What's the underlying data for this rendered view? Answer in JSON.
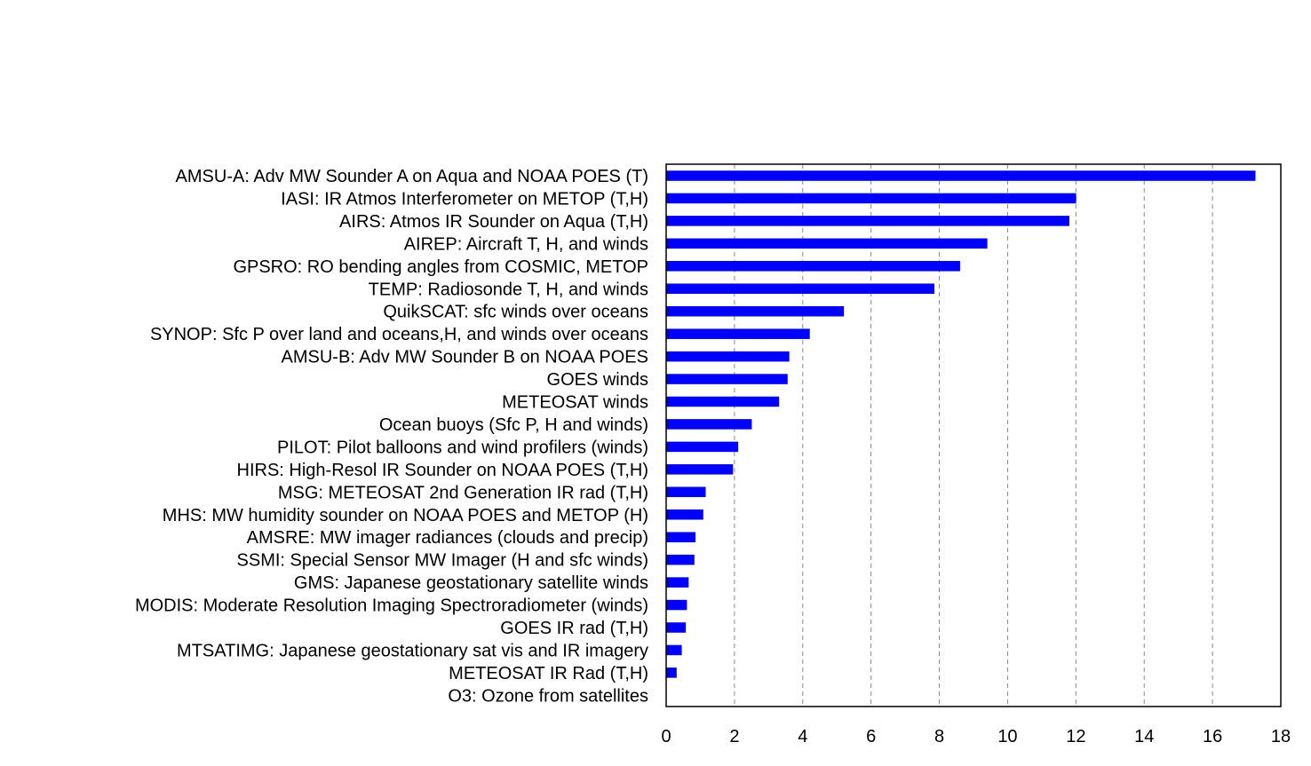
{
  "chart_data": {
    "type": "bar",
    "orientation": "horizontal",
    "title": "",
    "xlabel": "",
    "ylabel": "",
    "xlim": [
      0,
      18
    ],
    "xticks": [
      "0",
      "2",
      "4",
      "6",
      "8",
      "10",
      "12",
      "14",
      "16",
      "18"
    ],
    "grid": "vertical dashed",
    "legend": "none",
    "bar_color": "#0000ff",
    "categories": [
      "AMSU-A: Adv MW Sounder A on Aqua and NOAA POES (T)",
      "IASI: IR Atmos Interferometer on METOP (T,H)",
      "AIRS: Atmos IR Sounder on Aqua (T,H)",
      "AIREP: Aircraft T, H, and winds",
      "GPSRO: RO bending angles from COSMIC, METOP",
      "TEMP: Radiosonde T, H, and winds",
      "QuikSCAT: sfc winds over oceans",
      "SYNOP: Sfc P over land and oceans,H, and winds over oceans",
      "AMSU-B: Adv MW Sounder B on NOAA POES",
      "GOES winds",
      "METEOSAT winds",
      "Ocean buoys (Sfc P, H and winds)",
      "PILOT: Pilot balloons and wind profilers (winds)",
      "HIRS: High-Resol IR Sounder on NOAA POES (T,H)",
      "MSG: METEOSAT 2nd Generation IR rad (T,H)",
      "MHS: MW humidity sounder on NOAA POES and METOP (H)",
      "AMSRE: MW imager radiances (clouds and precip)",
      "SSMI: Special Sensor MW Imager (H and sfc winds)",
      "GMS: Japanese geostationary satellite winds",
      "MODIS: Moderate Resolution Imaging Spectroradiometer (winds)",
      "GOES IR rad (T,H)",
      "MTSATIMG: Japanese geostationary sat vis and IR imagery",
      "METEOSAT IR Rad (T,H)",
      "O3: Ozone from satellites"
    ],
    "values": [
      17.25,
      12.0,
      11.8,
      9.4,
      8.6,
      7.85,
      5.2,
      4.2,
      3.6,
      3.55,
      3.3,
      2.5,
      2.1,
      1.95,
      1.15,
      1.08,
      0.85,
      0.82,
      0.65,
      0.6,
      0.57,
      0.45,
      0.3,
      0.0
    ]
  }
}
